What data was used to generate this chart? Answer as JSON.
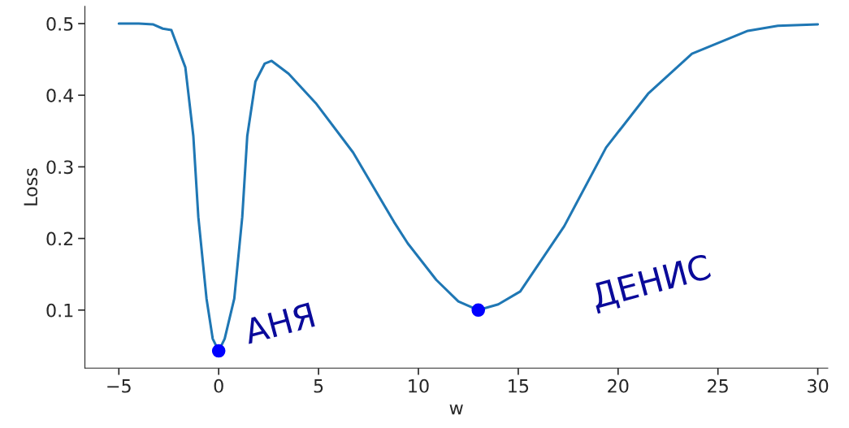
{
  "chart_data": {
    "type": "line",
    "xlabel": "w",
    "ylabel": "Loss",
    "xlim": [
      -6.7,
      30.5
    ],
    "ylim": [
      0.019,
      0.524
    ],
    "xticks": [
      {
        "value": -5,
        "label": "−5"
      },
      0,
      5,
      10,
      15,
      20,
      25,
      30
    ],
    "yticks": [
      0.1,
      0.2,
      0.3,
      0.4,
      0.5
    ],
    "grid": false,
    "legend": false,
    "series": [
      {
        "color": "#1f77b4",
        "x": [
          -5,
          -4,
          -3.3,
          -2.8,
          -2.37,
          -1.67,
          -1.27,
          -1.02,
          -0.61,
          -0.3,
          0,
          0.3,
          0.78,
          1.18,
          1.43,
          1.84,
          2.3,
          2.65,
          3.5,
          4.86,
          6.73,
          8.78,
          9.47,
          10.9,
          12,
          13,
          14,
          15.1,
          17.3,
          19.4,
          21.5,
          23.7,
          26.5,
          28,
          30
        ],
        "values": [
          0.5,
          0.5,
          0.499,
          0.493,
          0.491,
          0.439,
          0.343,
          0.23,
          0.116,
          0.06,
          0.043,
          0.06,
          0.116,
          0.23,
          0.343,
          0.419,
          0.444,
          0.448,
          0.43,
          0.389,
          0.32,
          0.223,
          0.193,
          0.142,
          0.112,
          0.1,
          0.108,
          0.126,
          0.217,
          0.327,
          0.402,
          0.458,
          0.49,
          0.497,
          0.499
        ]
      },
      {
        "type": "scatter",
        "color": "#0000ff",
        "marker": "circle",
        "x": [
          0,
          13
        ],
        "values": [
          0.043,
          0.1
        ]
      }
    ],
    "annotations": [
      "АНЯ",
      "ДЕНИС"
    ]
  }
}
